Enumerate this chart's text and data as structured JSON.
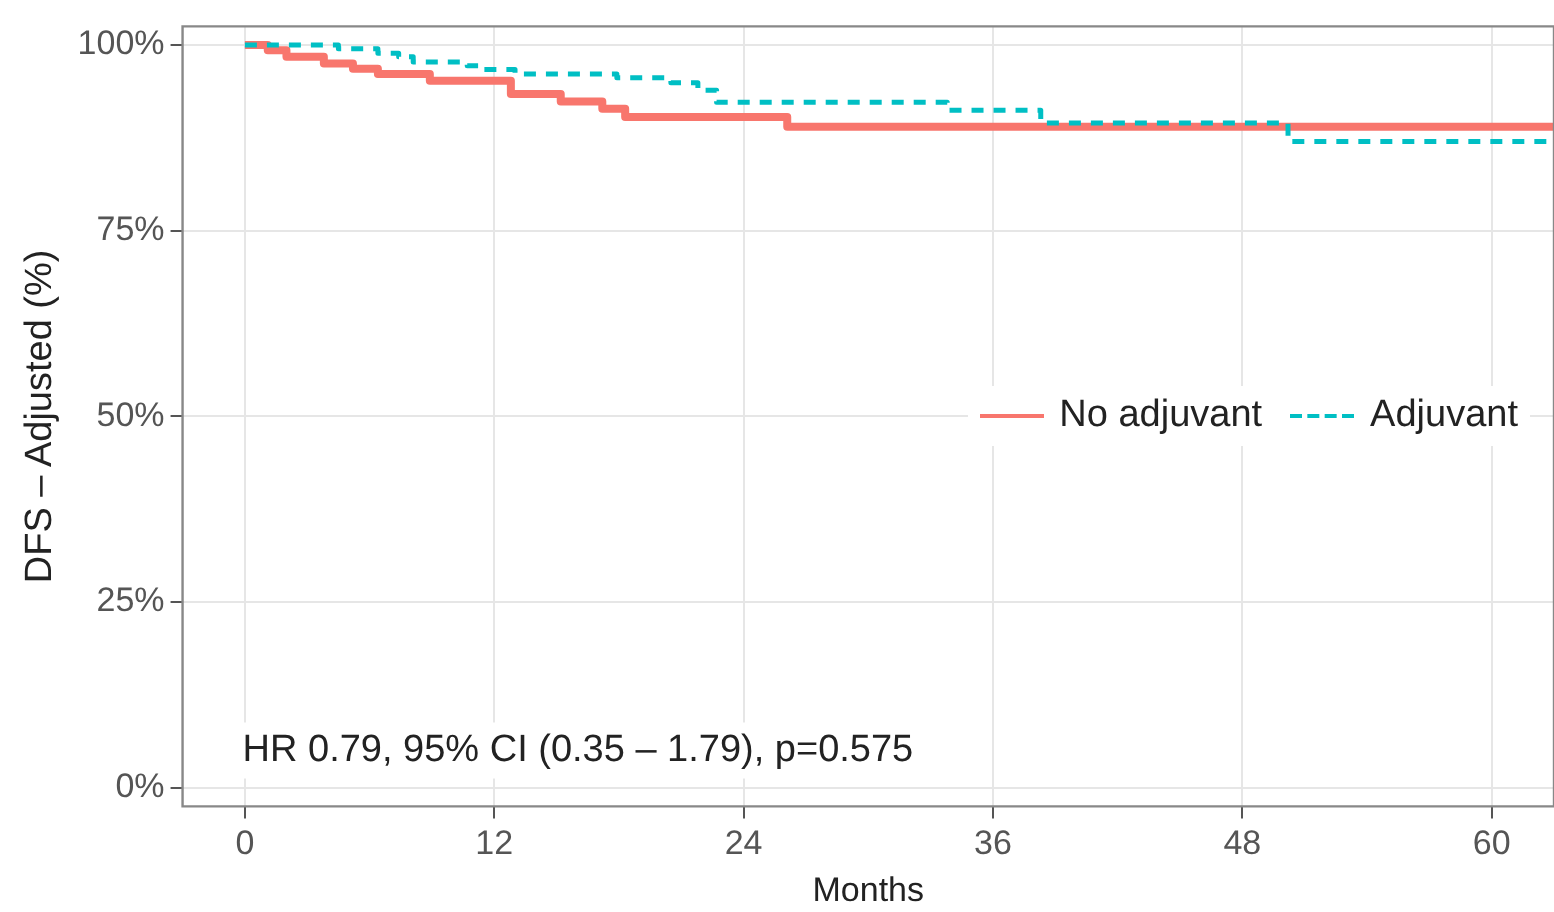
{
  "chart_data": {
    "type": "step",
    "xlabel": "Months",
    "ylabel": "DFS – Adjusted (%)",
    "xlim": [
      -3,
      63
    ],
    "xticks": [
      0,
      12,
      24,
      36,
      48,
      60
    ],
    "ylim": [
      -2.5,
      102.5
    ],
    "yticks": [
      {
        "value": 0,
        "label": "0%"
      },
      {
        "value": 25,
        "label": "25%"
      },
      {
        "value": 50,
        "label": "50%"
      },
      {
        "value": 75,
        "label": "75%"
      },
      {
        "value": 100,
        "label": "100%"
      }
    ],
    "grid": true,
    "legend": "right",
    "marker": "none",
    "annotations": [
      "HR 0.79, 95% CI (0.35 – 1.79), p=0.575"
    ],
    "series": [
      {
        "name": "No adjuvant",
        "color": "#f8766d",
        "line_style": "solid",
        "x": [
          0,
          1.1,
          2.0,
          3.8,
          5.2,
          6.4,
          8.9,
          12.8,
          15.2,
          17.2,
          18.3,
          26.1,
          63
        ],
        "values": [
          100,
          99.3,
          98.4,
          97.5,
          96.8,
          96.1,
          95.2,
          93.4,
          92.4,
          91.4,
          90.3,
          89.0,
          89.0
        ]
      },
      {
        "name": "Adjuvant",
        "color": "#00bfc4",
        "line_style": "dashed",
        "x": [
          0,
          4.5,
          6.4,
          7.4,
          8.1,
          10.7,
          11.3,
          13.0,
          17.9,
          20.5,
          21.8,
          22.7,
          33.8,
          38.3,
          50.2,
          63
        ],
        "values": [
          100,
          99.5,
          98.9,
          98.4,
          97.7,
          97.2,
          96.7,
          96.1,
          95.6,
          94.9,
          93.9,
          92.3,
          91.2,
          89.5,
          87.0,
          87.0
        ]
      }
    ]
  }
}
